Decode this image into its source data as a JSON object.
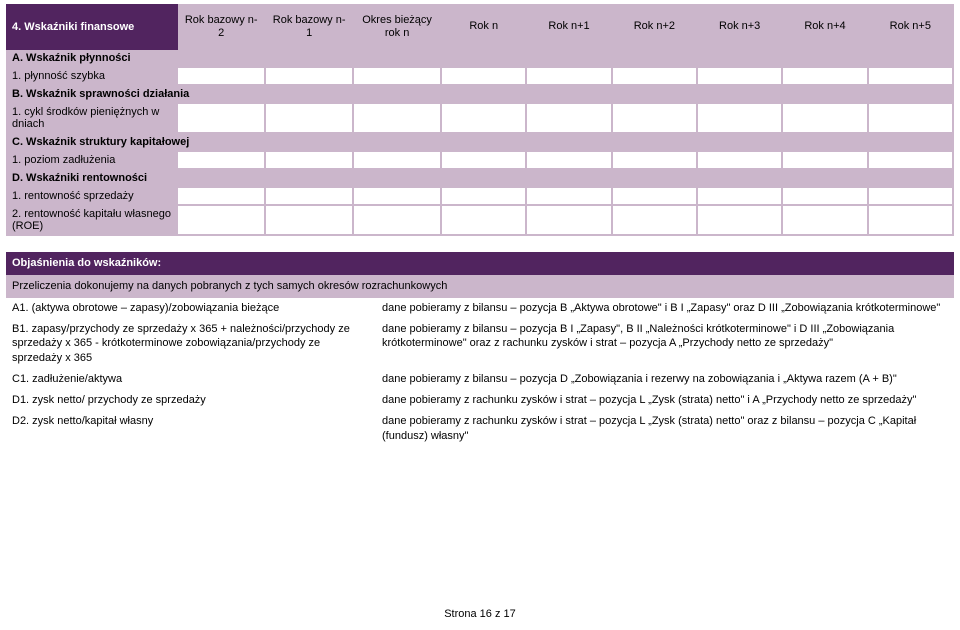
{
  "mainTable": {
    "titleRow": "4. Wskaźniki finansowe",
    "headers": [
      "Rok bazowy n-2",
      "Rok bazowy n-1",
      "Okres bieżący rok n",
      "Rok n",
      "Rok n+1",
      "Rok n+2",
      "Rok n+3",
      "Rok n+4",
      "Rok n+5"
    ],
    "sections": [
      {
        "title": "A. Wskaźnik płynności",
        "rows": [
          "1. płynność szybka"
        ]
      },
      {
        "title": "B. Wskaźnik sprawności działania",
        "rows": [
          "1. cykl środków pieniężnych w dniach"
        ]
      },
      {
        "title": "C. Wskaźnik struktury kapitałowej",
        "rows": [
          "1. poziom zadłużenia"
        ]
      },
      {
        "title": "D. Wskaźniki rentowności",
        "rows": [
          "1. rentowność sprzedaży",
          "2. rentowność kapitału własnego (ROE)"
        ]
      }
    ]
  },
  "explTable": {
    "heading": "Objaśnienia do wskaźników:",
    "subheading": "Przeliczenia dokonujemy na danych pobranych z tych samych okresów rozrachunkowych",
    "rows": [
      {
        "left": "A1. (aktywa obrotowe – zapasy)/zobowiązania bieżące",
        "right": "dane pobieramy z bilansu – pozycja B „Aktywa obrotowe\" i B I „Zapasy\" oraz  D III „Zobowiązania krótkoterminowe\""
      },
      {
        "left": "B1. zapasy/przychody ze sprzedaży x 365 + należności/przychody ze sprzedaży x 365 - krótkoterminowe zobowiązania/przychody ze sprzedaży x 365",
        "right": "dane pobieramy z bilansu – pozycja B I „Zapasy\", B II „Należności krótkoterminowe\" i D III „Zobowiązania krótkoterminowe\" oraz z rachunku zysków i strat – pozycja A „Przychody netto ze sprzedaży\""
      },
      {
        "left": "C1. zadłużenie/aktywa",
        "right": "dane pobieramy z bilansu – pozycja D „Zobowiązania i rezerwy na zobowiązania i „Aktywa razem (A + B)\""
      },
      {
        "left": "D1. zysk netto/ przychody ze sprzedaży",
        "right": "dane pobieramy z rachunku zysków i strat – pozycja L „Zysk (strata) netto\" i A „Przychody netto ze sprzedaży\""
      },
      {
        "left": "D2. zysk netto/kapitał własny",
        "right": "dane pobieramy z rachunku zysków i strat – pozycja L „Zysk (strata) netto\" oraz z bilansu – pozycja C „Kapitał (fundusz) własny\""
      }
    ]
  },
  "footer": "Strona 16 z 17"
}
